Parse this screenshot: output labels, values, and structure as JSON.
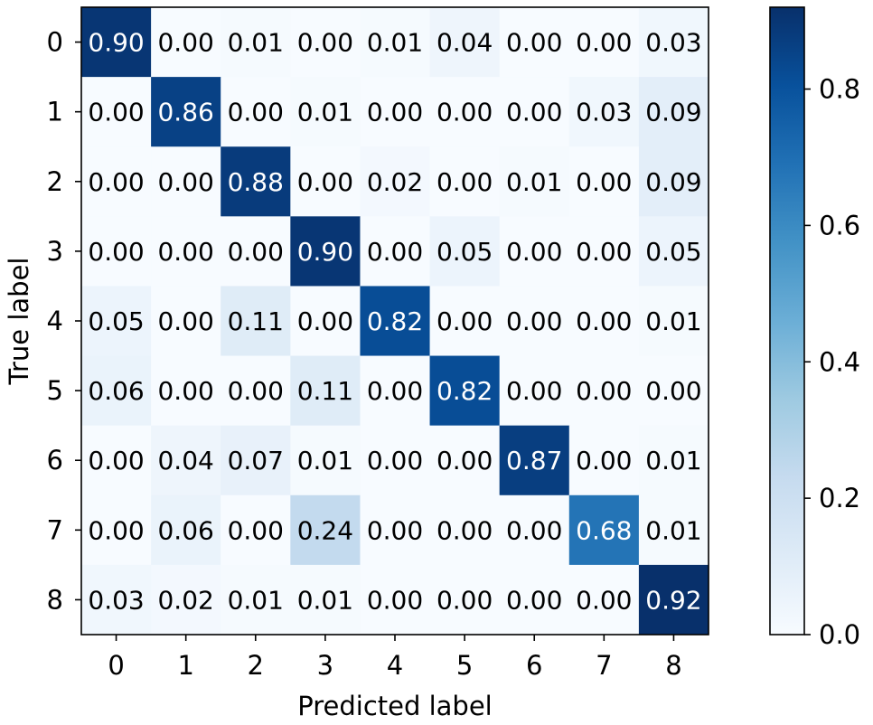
{
  "chart_data": {
    "type": "heatmap",
    "title": "",
    "xlabel": "Predicted label",
    "ylabel": "True label",
    "x_categories": [
      "0",
      "1",
      "2",
      "3",
      "4",
      "5",
      "6",
      "7",
      "8"
    ],
    "y_categories": [
      "0",
      "1",
      "2",
      "3",
      "4",
      "5",
      "6",
      "7",
      "8"
    ],
    "values": [
      [
        0.9,
        0.0,
        0.01,
        0.0,
        0.01,
        0.04,
        0.0,
        0.0,
        0.03
      ],
      [
        0.0,
        0.86,
        0.0,
        0.01,
        0.0,
        0.0,
        0.0,
        0.03,
        0.09
      ],
      [
        0.0,
        0.0,
        0.88,
        0.0,
        0.02,
        0.0,
        0.01,
        0.0,
        0.09
      ],
      [
        0.0,
        0.0,
        0.0,
        0.9,
        0.0,
        0.05,
        0.0,
        0.0,
        0.05
      ],
      [
        0.05,
        0.0,
        0.11,
        0.0,
        0.82,
        0.0,
        0.0,
        0.0,
        0.01
      ],
      [
        0.06,
        0.0,
        0.0,
        0.11,
        0.0,
        0.82,
        0.0,
        0.0,
        0.0
      ],
      [
        0.0,
        0.04,
        0.07,
        0.01,
        0.0,
        0.0,
        0.87,
        0.0,
        0.01
      ],
      [
        0.0,
        0.06,
        0.0,
        0.24,
        0.0,
        0.0,
        0.0,
        0.68,
        0.01
      ],
      [
        0.03,
        0.02,
        0.01,
        0.01,
        0.0,
        0.0,
        0.0,
        0.0,
        0.92
      ]
    ],
    "value_format_decimals": 2,
    "colormap": "Blues",
    "color_range": [
      0.0,
      0.92
    ],
    "text_color_dark": "#000000",
    "text_color_light": "#ffffff",
    "colorbar": {
      "ticks": [
        0.0,
        0.2,
        0.4,
        0.6,
        0.8
      ],
      "tick_labels": [
        "0.0",
        "0.2",
        "0.4",
        "0.6",
        "0.8"
      ],
      "placement": "right"
    },
    "grid": false
  }
}
